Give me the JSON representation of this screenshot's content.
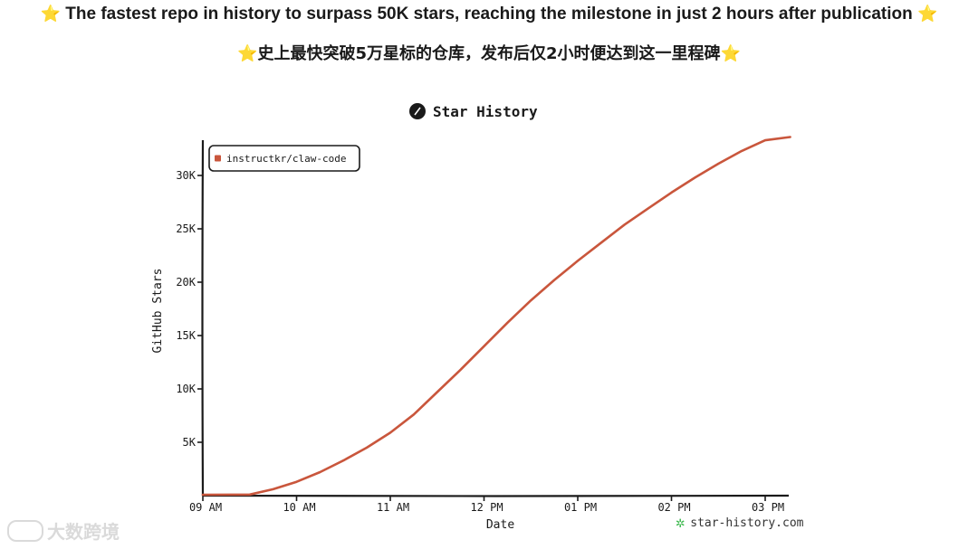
{
  "headline": {
    "english": "The fastest repo in history to surpass 50K stars, reaching the milestone in just 2 hours after publication",
    "chinese": "史上最快突破5万星标的仓库，发布后仅2小时便达到这一里程碑",
    "star_icon": "star-emoji-icon"
  },
  "chart_data": {
    "type": "line",
    "title": "Star History",
    "xlabel": "Date",
    "ylabel": "GitHub Stars",
    "x_ticks": [
      "09 AM",
      "10 AM",
      "11 AM",
      "12 PM",
      "01 PM",
      "02 PM",
      "03 PM"
    ],
    "y_ticks": [
      "5K",
      "10K",
      "15K",
      "20K",
      "25K",
      "30K"
    ],
    "ylim": [
      0,
      33500
    ],
    "xlim": [
      "09:00",
      "15:16"
    ],
    "legend_position": "top-left",
    "grid": false,
    "series": [
      {
        "name": "instructkr/claw-code",
        "color": "#c9563c",
        "x": [
          "09:00",
          "09:30",
          "09:45",
          "10:00",
          "10:15",
          "10:30",
          "10:45",
          "11:00",
          "11:15",
          "11:30",
          "11:45",
          "12:00",
          "12:15",
          "12:30",
          "12:45",
          "13:00",
          "13:15",
          "13:30",
          "13:45",
          "14:00",
          "14:15",
          "14:30",
          "14:45",
          "15:00",
          "15:16"
        ],
        "y": [
          0,
          100,
          600,
          1300,
          2200,
          3300,
          4500,
          5900,
          7600,
          9700,
          11800,
          14000,
          16200,
          18300,
          20200,
          22000,
          23700,
          25400,
          26900,
          28400,
          29800,
          31100,
          32300,
          33300,
          33600
        ]
      }
    ]
  },
  "brand": {
    "label": "star-history.com",
    "icon": "star-history-logo-icon"
  },
  "watermark": {
    "label": "大数跨境",
    "icon": "watermark-logo-icon"
  }
}
